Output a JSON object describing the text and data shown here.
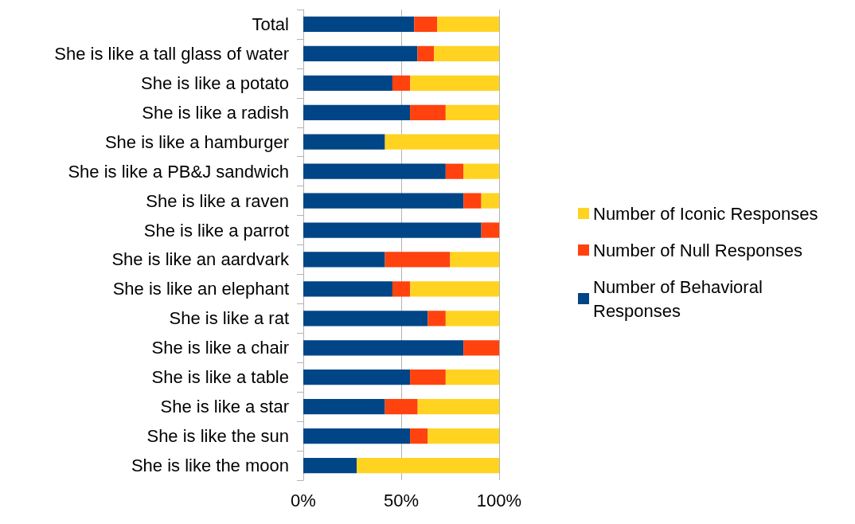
{
  "chart_data": {
    "type": "bar",
    "orientation": "horizontal",
    "stacked": true,
    "categories": [
      "Total",
      "She is like a tall glass of water",
      "She is like a potato",
      "She is like a radish",
      "She is like a hamburger",
      "She is like a PB&J sandwich",
      "She is like a raven",
      "She is like a parrot",
      "She is like an aardvark",
      "She is like an elephant",
      "She is like a rat",
      "She is like a chair",
      "She is like a table",
      "She is like a star",
      "She is like the sun",
      "She is like the moon"
    ],
    "series": [
      {
        "name": "Number of Behavioral Responses",
        "color": "#004586",
        "values": [
          56.6,
          58.3,
          45.5,
          54.5,
          41.7,
          72.7,
          81.8,
          90.9,
          41.7,
          45.5,
          63.6,
          81.8,
          54.5,
          41.7,
          54.5,
          27.3
        ]
      },
      {
        "name": "Number of Null Responses",
        "color": "#ff420e",
        "values": [
          11.8,
          8.5,
          9.1,
          18.2,
          0,
          9.1,
          9.1,
          9.1,
          33.3,
          9.1,
          9.1,
          18.2,
          18.2,
          16.7,
          9.1,
          0
        ]
      },
      {
        "name": "Number of Iconic Responses",
        "color": "#ffd320",
        "values": [
          31.6,
          33.2,
          45.4,
          27.3,
          58.3,
          18.2,
          9.1,
          0,
          25,
          45.4,
          27.3,
          0,
          27.3,
          41.6,
          36.4,
          72.7
        ]
      }
    ],
    "xlim": [
      0,
      100
    ],
    "xticks": [
      {
        "value": 0,
        "label": "0%"
      },
      {
        "value": 50,
        "label": "50%"
      },
      {
        "value": 100,
        "label": "100%"
      }
    ],
    "grid": "x",
    "legend": "right"
  }
}
